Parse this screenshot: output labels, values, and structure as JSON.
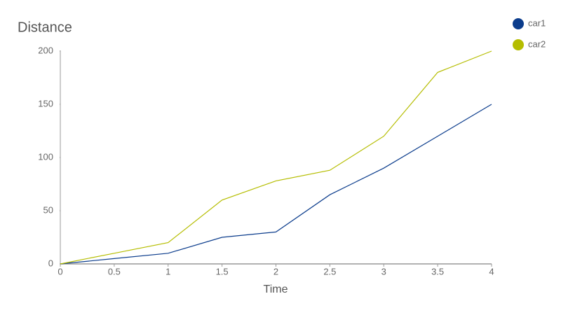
{
  "chart_data": {
    "type": "line",
    "title": "Distance",
    "x_label": "Time",
    "x": [
      0,
      0.5,
      1,
      1.5,
      2,
      2.5,
      3,
      3.5,
      4
    ],
    "series": [
      {
        "name": "car1",
        "color": "#0b3c8c",
        "values": [
          0,
          5,
          10,
          25,
          30,
          65,
          90,
          120,
          150
        ]
      },
      {
        "name": "car2",
        "color": "#b5bd00",
        "values": [
          0,
          10,
          20,
          60,
          78,
          88,
          120,
          180,
          200
        ]
      }
    ],
    "xlim": [
      0,
      4
    ],
    "xticks": [
      0,
      0.5,
      1,
      1.5,
      2,
      2.5,
      3,
      3.5,
      4
    ],
    "ylim": [
      0,
      200
    ],
    "yticks": [
      0,
      50,
      100,
      150,
      200
    ],
    "legend": "top-right"
  }
}
